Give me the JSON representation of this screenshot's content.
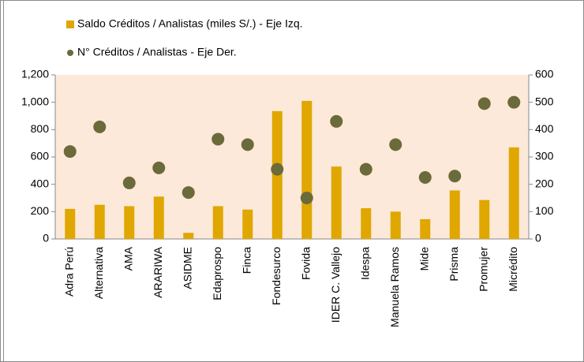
{
  "chart_data": {
    "type": "bar",
    "categories": [
      "Adra Perú",
      "Alternativa",
      "AMA",
      "ARARIWA",
      "ASIDME",
      "Edaprospo",
      "Finca",
      "Fondesurco",
      "Fovida",
      "IDER C. Vallejo",
      "Idespa",
      "Manuela Ramos",
      "Mide",
      "Prisma",
      "Promujer",
      "Micrédito"
    ],
    "series": [
      {
        "name": "Saldo Créditos / Analistas (miles S/.) - Eje Izq.",
        "type": "bar",
        "color": "#dfa700",
        "axis": "y",
        "values": [
          220,
          250,
          240,
          310,
          45,
          240,
          215,
          935,
          1010,
          530,
          225,
          200,
          145,
          355,
          285,
          670
        ]
      },
      {
        "name": "N° Créditos / Analistas - Eje Der.",
        "type": "scatter",
        "color": "#6b6a3a",
        "axis": "y2",
        "values": [
          320,
          410,
          205,
          260,
          170,
          365,
          345,
          255,
          150,
          430,
          255,
          345,
          225,
          230,
          495,
          500
        ]
      }
    ],
    "ylim": [
      0,
      1200
    ],
    "yticks": [
      0,
      200,
      400,
      600,
      800,
      {
        "value": 1000,
        "label": "1,000"
      },
      {
        "value": 1200,
        "label": "1,200"
      }
    ],
    "y2lim": [
      0,
      600
    ],
    "y2ticks": [
      0,
      100,
      200,
      300,
      400,
      500,
      600
    ],
    "plot_background": "#fde9d9"
  }
}
